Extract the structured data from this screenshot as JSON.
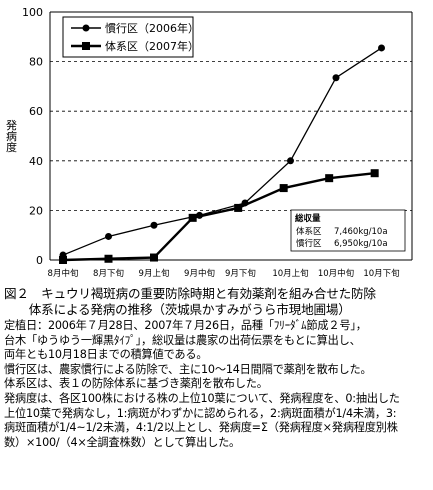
{
  "chart_data": {
    "type": "line",
    "title": "",
    "xlabel": "",
    "ylabel": "発病度",
    "ylim": [
      0,
      100
    ],
    "yticks": [
      0,
      20,
      40,
      60,
      80,
      100
    ],
    "grid": "horizontal-dashed",
    "categories": [
      "8月中旬",
      "8月下旬",
      "9月上旬",
      "9月中旬",
      "9月下旬",
      "10月上旬",
      "10月中旬",
      "10月下旬"
    ],
    "x_positions": [
      0,
      1,
      2,
      3,
      3.9,
      5,
      6,
      7
    ],
    "legend_position": "top-left",
    "series": [
      {
        "name": "慣行区（2006年）",
        "marker": "circle",
        "color": "#000000",
        "x": [
          0,
          1,
          2,
          3,
          4,
          5,
          6,
          7
        ],
        "values": [
          2,
          9.5,
          14,
          18,
          23,
          40,
          73.5,
          85.5
        ]
      },
      {
        "name": "体系区（2007年）",
        "marker": "square",
        "color": "#000000",
        "x": [
          0,
          1,
          2,
          2.85,
          3.85,
          4.85,
          5.85,
          6.85
        ],
        "values": [
          0,
          0.5,
          1,
          17,
          21,
          29,
          33,
          35
        ]
      }
    ],
    "annotation": {
      "title": "総収量",
      "rows": [
        {
          "label": "体系区",
          "value": "7,460kg/10a"
        },
        {
          "label": "慣行区",
          "value": "6,950kg/10a"
        }
      ]
    }
  },
  "caption": {
    "title": "図２　キュウリ褐斑病の重要防除時期と有効薬剤を組み合せた防除体系による発病の推移（茨城県かすみがうら市現地圃場）",
    "title_line1": "図２　キュウリ褐斑病の重要防除時期と有効薬剤を組み合せた防除",
    "title_line2": "　　体系による発病の推移（茨城県かすみがうら市現地圃場）",
    "lines": [
      "定植日：2006年７月28日、2007年７月26日，品種「ﾌﾘｰﾀﾞﾑ節成２号」，",
      "台木「ゆうゆう一輝黒ﾀｲﾌﾟ」，総収量は農家の出荷伝票をもとに算出し、",
      "両年とも10月18日までの積算値である。",
      "慣行区は、農家慣行による防除で、主に10～14日間隔で薬剤を散布した。",
      "体系区は、表１の防除体系に基づき薬剤を散布した。",
      "発病度は、各区100株における株の上位10葉について、発病程度を、0:抽出した",
      "上位10葉で発病なし，1:病斑がわずかに認められる，2:病斑面積が1/4未満，3:",
      "病斑面積が1/4~1/2未満，4:1/2以上とし、発病度=Σ（発病程度×発病程度別株",
      "数）×100/（4×全調査株数）として算出した。"
    ]
  }
}
